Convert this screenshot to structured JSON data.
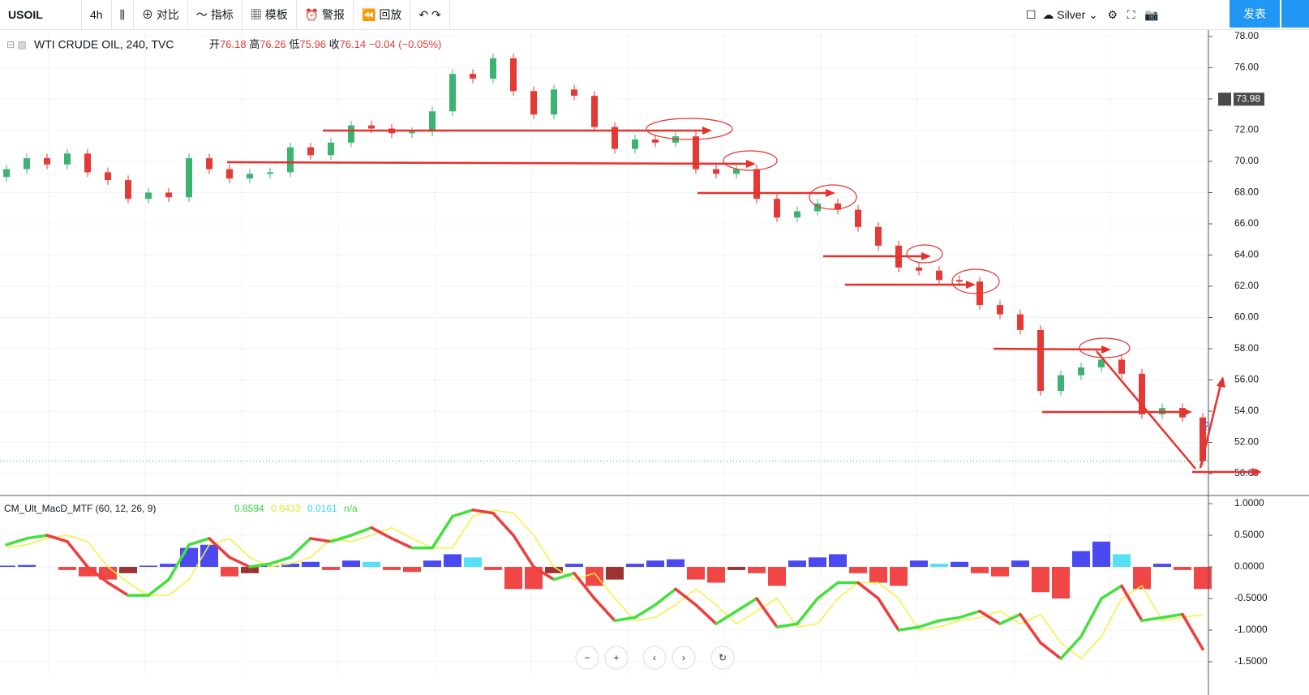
{
  "toolbar": {
    "symbol": "USOIL",
    "interval": "4h",
    "buttons": [
      "对比",
      "指标",
      "模板",
      "警报",
      "回放"
    ],
    "theme": "Silver",
    "publish": "发表"
  },
  "chart_data": [
    {
      "type": "candlestick",
      "title": "WTI CRUDE OIL, 240, TVC",
      "legend": {
        "open_label": "开",
        "open": 76.18,
        "high_label": "高",
        "high": 76.26,
        "low_label": "低",
        "low": 75.96,
        "close_label": "收",
        "close": 76.14,
        "change": "−0.04 (−0.05%)"
      },
      "crosshair_label": 73.98,
      "annotation": "?",
      "colors": {
        "up": "#3cb371",
        "down": "#e53935"
      },
      "open": [
        69.0,
        69.5,
        70.2,
        69.8,
        70.5,
        69.3,
        68.8,
        67.6,
        68.0,
        67.7,
        70.2,
        69.5,
        68.9,
        69.2,
        69.3,
        70.9,
        70.4,
        71.2,
        72.3,
        72.1,
        71.8,
        71.9,
        73.2,
        75.6,
        75.3,
        76.6,
        74.5,
        73.0,
        74.6,
        74.2,
        72.2,
        70.8,
        71.4,
        71.2,
        71.6,
        69.5,
        69.2,
        69.5,
        67.6,
        66.4,
        66.8,
        67.3,
        66.9,
        65.8,
        64.6,
        63.2,
        63.0,
        62.4,
        62.3,
        60.8,
        60.2,
        59.2,
        55.3,
        56.3,
        56.8,
        57.3,
        56.4,
        53.8,
        54.2,
        53.6
      ],
      "high": [
        69.8,
        70.5,
        70.5,
        70.8,
        70.8,
        69.6,
        69.1,
        68.3,
        68.3,
        70.5,
        70.5,
        69.8,
        69.5,
        69.6,
        71.2,
        71.2,
        71.5,
        72.6,
        72.6,
        72.4,
        72.2,
        73.5,
        75.9,
        75.9,
        76.9,
        76.9,
        74.8,
        74.9,
        74.9,
        74.5,
        72.5,
        71.7,
        71.7,
        71.9,
        71.9,
        69.8,
        69.8,
        69.8,
        67.9,
        67.1,
        67.6,
        67.6,
        67.2,
        66.1,
        64.9,
        63.5,
        63.3,
        62.7,
        62.6,
        61.1,
        60.5,
        59.5,
        56.6,
        57.1,
        57.6,
        57.6,
        56.7,
        54.5,
        54.5,
        53.9
      ],
      "low": [
        68.7,
        69.2,
        69.5,
        69.5,
        69.0,
        68.5,
        67.3,
        67.3,
        67.4,
        67.4,
        69.2,
        68.6,
        68.6,
        68.9,
        69.0,
        70.1,
        70.1,
        70.9,
        71.8,
        71.5,
        71.5,
        71.6,
        72.9,
        75.0,
        75.0,
        74.2,
        72.7,
        72.7,
        73.9,
        71.9,
        70.5,
        70.5,
        70.9,
        70.9,
        69.2,
        68.9,
        68.9,
        67.3,
        66.1,
        66.1,
        66.5,
        66.6,
        65.5,
        64.3,
        62.9,
        62.7,
        62.1,
        62.0,
        60.5,
        59.9,
        58.9,
        55.0,
        55.0,
        56.0,
        56.5,
        56.1,
        53.5,
        53.5,
        53.3,
        50.5
      ],
      "close": [
        69.5,
        70.2,
        69.8,
        70.5,
        69.3,
        68.8,
        67.6,
        68.0,
        67.7,
        70.2,
        69.5,
        68.9,
        69.2,
        69.3,
        70.9,
        70.4,
        71.2,
        72.3,
        72.1,
        71.8,
        71.9,
        73.2,
        75.6,
        75.3,
        76.6,
        74.5,
        73.0,
        74.6,
        74.2,
        72.2,
        70.8,
        71.4,
        71.2,
        71.6,
        69.5,
        69.2,
        69.5,
        67.6,
        66.4,
        66.8,
        67.3,
        66.9,
        65.8,
        64.6,
        63.2,
        63.0,
        62.4,
        62.3,
        60.8,
        60.2,
        59.2,
        55.3,
        56.3,
        56.8,
        57.3,
        56.4,
        53.8,
        54.2,
        53.6,
        50.8
      ],
      "ylim": [
        48.65,
        78.36
      ],
      "yticks": [
        {
          "value": 50,
          "label": "50.00"
        },
        {
          "value": 52,
          "label": "52.00"
        },
        {
          "value": 54,
          "label": "54.00"
        },
        {
          "value": 56,
          "label": "56.00"
        },
        {
          "value": 58,
          "label": "58.00"
        },
        {
          "value": 60,
          "label": "60.00"
        },
        {
          "value": 62,
          "label": "62.00"
        },
        {
          "value": 64,
          "label": "64.00"
        },
        {
          "value": 66,
          "label": "66.00"
        },
        {
          "value": 68,
          "label": "68.00"
        },
        {
          "value": 70,
          "label": "70.00"
        },
        {
          "value": 72,
          "label": "72.00"
        },
        {
          "value": 74,
          "label": "74.00"
        },
        {
          "value": 76,
          "label": "76.00"
        },
        {
          "value": 78,
          "label": "78.00"
        }
      ],
      "grid": true
    },
    {
      "type": "macd",
      "title": "CM_Ult_MacD_MTF (60, 12, 26, 9)",
      "legend_values": [
        0.8594,
        0.8433,
        0.0161
      ],
      "legend_na": "n/a",
      "colors": {
        "rise": "#44e03c",
        "fall": "#f03c3c",
        "signal": "#f5f03c",
        "hist": [
          "#55e0f5",
          "#4a4af0",
          "#f04646",
          "#9c3232"
        ]
      },
      "macd": [
        0.35,
        0.45,
        0.5,
        0.4,
        0.0,
        -0.25,
        -0.45,
        -0.45,
        -0.2,
        0.35,
        0.45,
        0.15,
        0.0,
        0.05,
        0.15,
        0.45,
        0.4,
        0.5,
        0.62,
        0.45,
        0.3,
        0.3,
        0.8,
        0.9,
        0.85,
        0.5,
        0.0,
        -0.2,
        -0.1,
        -0.5,
        -0.85,
        -0.8,
        -0.6,
        -0.35,
        -0.6,
        -0.9,
        -0.7,
        -0.5,
        -0.95,
        -0.9,
        -0.5,
        -0.25,
        -0.25,
        -0.5,
        -1.0,
        -0.95,
        -0.85,
        -0.8,
        -0.7,
        -0.9,
        -0.75,
        -1.2,
        -1.45,
        -1.1,
        -0.5,
        -0.3,
        -0.85,
        -0.8,
        -0.75,
        -1.3
      ],
      "signal": [
        0.3,
        0.35,
        0.45,
        0.5,
        0.4,
        0.0,
        -0.25,
        -0.45,
        -0.45,
        -0.2,
        0.35,
        0.45,
        0.15,
        0.0,
        0.05,
        0.15,
        0.45,
        0.4,
        0.5,
        0.62,
        0.45,
        0.3,
        0.3,
        0.8,
        0.9,
        0.85,
        0.5,
        0.0,
        -0.2,
        -0.1,
        -0.5,
        -0.85,
        -0.8,
        -0.6,
        -0.35,
        -0.6,
        -0.9,
        -0.7,
        -0.5,
        -0.95,
        -0.9,
        -0.5,
        -0.25,
        -0.25,
        -0.5,
        -1.0,
        -0.95,
        -0.85,
        -0.8,
        -0.7,
        -0.9,
        -0.75,
        -1.2,
        -1.45,
        -1.1,
        -0.5,
        -0.3,
        -0.85,
        -0.8,
        -0.75
      ],
      "hist": [
        0.02,
        0.03,
        0.0,
        -0.05,
        -0.15,
        -0.2,
        -0.1,
        0.02,
        0.05,
        0.3,
        0.35,
        -0.15,
        -0.1,
        0.02,
        0.05,
        0.08,
        -0.05,
        0.1,
        0.08,
        -0.05,
        -0.08,
        0.1,
        0.2,
        0.15,
        -0.05,
        -0.35,
        -0.35,
        -0.1,
        0.05,
        -0.3,
        -0.2,
        0.05,
        0.1,
        0.12,
        -0.2,
        -0.25,
        -0.05,
        -0.1,
        -0.3,
        0.1,
        0.15,
        0.2,
        -0.1,
        -0.25,
        -0.3,
        0.1,
        0.05,
        0.08,
        -0.1,
        -0.15,
        0.1,
        -0.4,
        -0.5,
        0.25,
        0.4,
        0.2,
        -0.35,
        0.05,
        -0.05,
        -0.35
      ],
      "ylim": [
        -1.705,
        1.103
      ],
      "yticks": [
        {
          "value": -1.5,
          "label": "-1.5000"
        },
        {
          "value": -1,
          "label": "-1.0000"
        },
        {
          "value": -0.5,
          "label": "-0.5000"
        },
        {
          "value": 0,
          "label": "0.0000"
        },
        {
          "value": 0.5,
          "label": "0.5000"
        },
        {
          "value": 1,
          "label": "1.0000"
        }
      ]
    }
  ]
}
